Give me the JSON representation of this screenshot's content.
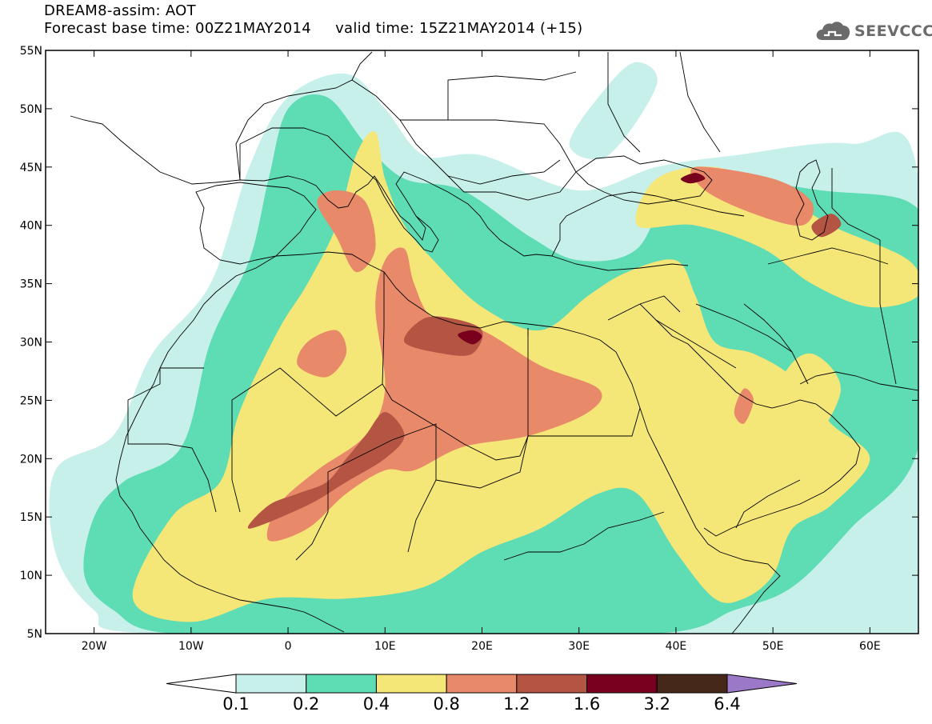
{
  "header": {
    "title": "DREAM8-assim: AOT",
    "base_time_label": "Forecast base time: 00Z21MAY2014",
    "valid_time_label": "valid time: 15Z21MAY2014 (+15)",
    "logo_text": "SEEVCCC"
  },
  "map": {
    "variable": "AOT",
    "lon_range": [
      -25,
      65
    ],
    "lat_range": [
      5,
      55
    ],
    "lat_ticks": [
      {
        "value": 55,
        "label": "55N"
      },
      {
        "value": 50,
        "label": "50N"
      },
      {
        "value": 45,
        "label": "45N"
      },
      {
        "value": 40,
        "label": "40N"
      },
      {
        "value": 35,
        "label": "35N"
      },
      {
        "value": 30,
        "label": "30N"
      },
      {
        "value": 25,
        "label": "25N"
      },
      {
        "value": 20,
        "label": "20N"
      },
      {
        "value": 15,
        "label": "15N"
      },
      {
        "value": 10,
        "label": "10N"
      },
      {
        "value": 5,
        "label": "5N"
      }
    ],
    "lon_ticks": [
      {
        "value": -20,
        "label": "20W"
      },
      {
        "value": -10,
        "label": "10W"
      },
      {
        "value": 0,
        "label": "0"
      },
      {
        "value": 10,
        "label": "10E"
      },
      {
        "value": 20,
        "label": "20E"
      },
      {
        "value": 30,
        "label": "30E"
      },
      {
        "value": 40,
        "label": "40E"
      },
      {
        "value": 50,
        "label": "50E"
      },
      {
        "value": 60,
        "label": "60E"
      }
    ],
    "fields": [
      {
        "level": 0.1,
        "color": "#c8f0eb",
        "regions": [
          [
            [
              -24,
              19
            ],
            [
              -18,
              22
            ],
            [
              -14,
              29
            ],
            [
              -8,
              35
            ],
            [
              -4,
              45
            ],
            [
              0,
              51
            ],
            [
              6,
              53
            ],
            [
              10,
              50
            ],
            [
              14,
              46
            ],
            [
              20,
              46
            ],
            [
              30,
              43
            ],
            [
              38,
              45
            ],
            [
              46,
              46
            ],
            [
              58,
              47
            ],
            [
              65,
              44
            ],
            [
              65,
              5
            ],
            [
              30,
              5
            ],
            [
              -14,
              5
            ],
            [
              -20,
              7
            ],
            [
              -24,
              12
            ]
          ],
          [
            [
              29,
              47
            ],
            [
              33,
              52
            ],
            [
              36,
              54
            ],
            [
              38,
              52
            ],
            [
              33,
              46
            ]
          ]
        ]
      },
      {
        "level": 0.2,
        "color": "#5edcb4",
        "regions": [
          [
            [
              -21,
              10
            ],
            [
              -20,
              15
            ],
            [
              -17,
              18
            ],
            [
              -11,
              21
            ],
            [
              -8,
              30
            ],
            [
              -4,
              37
            ],
            [
              -2,
              44
            ],
            [
              0,
              50
            ],
            [
              4,
              51
            ],
            [
              8,
              47
            ],
            [
              12,
              44
            ],
            [
              18,
              43
            ],
            [
              25,
              39
            ],
            [
              30,
              37
            ],
            [
              36,
              38
            ],
            [
              40,
              44
            ],
            [
              46,
              44
            ],
            [
              55,
              43
            ],
            [
              64,
              42
            ],
            [
              65,
              38
            ],
            [
              65,
              21
            ],
            [
              58,
              14
            ],
            [
              52,
              9
            ],
            [
              46,
              7
            ],
            [
              38,
              5
            ],
            [
              10,
              5
            ],
            [
              -12,
              5
            ],
            [
              -18,
              7
            ]
          ]
        ]
      },
      {
        "level": 0.4,
        "color": "#f5e678",
        "regions": [
          [
            [
              -16,
              8
            ],
            [
              -12,
              15
            ],
            [
              -7,
              18
            ],
            [
              -5,
              24
            ],
            [
              -1,
              31
            ],
            [
              2,
              35
            ],
            [
              5,
              40
            ],
            [
              7,
              46
            ],
            [
              9,
              48
            ],
            [
              10,
              44
            ],
            [
              12,
              40
            ],
            [
              15,
              37
            ],
            [
              20,
              33
            ],
            [
              26,
              31
            ],
            [
              31,
              34
            ],
            [
              35,
              36
            ],
            [
              40,
              37
            ],
            [
              42,
              34
            ],
            [
              44,
              30
            ],
            [
              48,
              29
            ],
            [
              52,
              27
            ],
            [
              56,
              23
            ],
            [
              60,
              20
            ],
            [
              56,
              16
            ],
            [
              52,
              14
            ],
            [
              50,
              10
            ],
            [
              47,
              8
            ],
            [
              44,
              8
            ],
            [
              40,
              12
            ],
            [
              36,
              17
            ],
            [
              32,
              17
            ],
            [
              26,
              14
            ],
            [
              20,
              12
            ],
            [
              14,
              9
            ],
            [
              6,
              8
            ],
            [
              -2,
              8
            ],
            [
              -10,
              6
            ]
          ],
          [
            [
              38,
              44
            ],
            [
              44,
              45
            ],
            [
              50,
              43
            ],
            [
              56,
              40
            ],
            [
              64,
              37
            ],
            [
              65,
              34
            ],
            [
              60,
              33
            ],
            [
              54,
              35
            ],
            [
              49,
              38
            ],
            [
              42,
              40
            ],
            [
              36,
              40
            ]
          ],
          [
            [
              49,
              21
            ],
            [
              51,
              27
            ],
            [
              54,
              29
            ],
            [
              57,
              26
            ],
            [
              54,
              21
            ],
            [
              51,
              18
            ]
          ]
        ]
      },
      {
        "level": 0.8,
        "color": "#e8896a",
        "regions": [
          [
            [
              -2,
              13
            ],
            [
              -1,
              16
            ],
            [
              3,
              19
            ],
            [
              8,
              22
            ],
            [
              10,
              26
            ],
            [
              9,
              33
            ],
            [
              10,
              37
            ],
            [
              12,
              38
            ],
            [
              13,
              35
            ],
            [
              15,
              32
            ],
            [
              20,
              31
            ],
            [
              26,
              28
            ],
            [
              32,
              26
            ],
            [
              31,
              24
            ],
            [
              25,
              22
            ],
            [
              18,
              21
            ],
            [
              13,
              19
            ],
            [
              10,
              19
            ],
            [
              6,
              17
            ],
            [
              2,
              14
            ]
          ],
          [
            [
              1,
              28
            ],
            [
              2,
              30
            ],
            [
              5,
              31
            ],
            [
              6,
              29
            ],
            [
              4,
              27
            ]
          ],
          [
            [
              3,
              42
            ],
            [
              5,
              43
            ],
            [
              8,
              42
            ],
            [
              9,
              38
            ],
            [
              7,
              36
            ],
            [
              5,
              39
            ]
          ],
          [
            [
              42,
              45
            ],
            [
              50,
              44
            ],
            [
              54,
              42
            ],
            [
              53,
              40
            ],
            [
              48,
              41
            ],
            [
              43,
              43
            ]
          ],
          [
            [
              46,
              24
            ],
            [
              47,
              26
            ],
            [
              48,
              25
            ],
            [
              47,
              23
            ]
          ]
        ]
      },
      {
        "level": 1.2,
        "color": "#b45544",
        "regions": [
          [
            [
              -4,
              14
            ],
            [
              -2,
              16
            ],
            [
              1,
              17
            ],
            [
              4,
              18
            ],
            [
              6,
              20
            ],
            [
              8,
              22
            ],
            [
              10,
              24
            ],
            [
              12,
              22
            ],
            [
              10,
              20
            ],
            [
              6,
              18
            ],
            [
              2,
              16
            ]
          ],
          [
            [
              12,
              30
            ],
            [
              14,
              32
            ],
            [
              17,
              32
            ],
            [
              20,
              31
            ],
            [
              19,
              29
            ],
            [
              16,
              29
            ]
          ],
          [
            [
              54,
              40
            ],
            [
              56,
              41
            ],
            [
              57,
              40
            ],
            [
              55,
              39
            ]
          ]
        ]
      },
      {
        "level": 1.6,
        "color": "#78001e",
        "regions": [
          [
            [
              17.5,
              30.6
            ],
            [
              19,
              31
            ],
            [
              20,
              30.5
            ],
            [
              19,
              29.8
            ]
          ],
          [
            [
              40.5,
              44
            ],
            [
              42,
              44.5
            ],
            [
              43,
              44
            ],
            [
              41.5,
              43.6
            ]
          ]
        ]
      }
    ]
  },
  "colorbar": {
    "levels": [
      "0.1",
      "0.2",
      "0.4",
      "0.8",
      "1.2",
      "1.6",
      "3.2",
      "6.4"
    ],
    "colors": [
      "#ffffff",
      "#c8f0eb",
      "#5edcb4",
      "#f5e678",
      "#e8896a",
      "#b45544",
      "#78001e",
      "#45281a",
      "#9b78c8"
    ]
  },
  "colors": {
    "land_border": "#000000",
    "frame": "#000000"
  }
}
